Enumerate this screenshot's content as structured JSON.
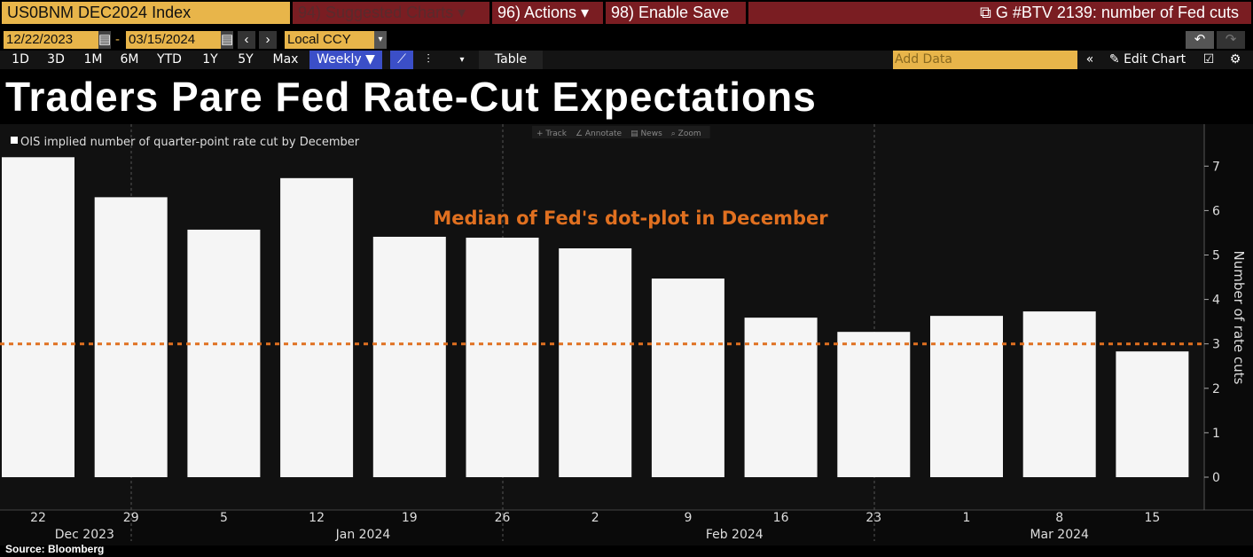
{
  "toolbar": {
    "ticker": "US0BNM DEC2024 Index",
    "suggested": "94) Suggested Charts ▾",
    "actions": "96) Actions ▾",
    "enable_save": "98) Enable Save",
    "chart_title": "G #BTV 2139: number of Fed cuts",
    "start_date": "12/22/2023",
    "end_date": "03/15/2024",
    "currency": "Local CCY",
    "periods": [
      "1D",
      "3D",
      "1M",
      "6M",
      "YTD",
      "1Y",
      "5Y",
      "Max"
    ],
    "frequency": "Weekly ▼",
    "table": "Table",
    "add_data_placeholder": "Add Data",
    "edit_chart": "Edit Chart"
  },
  "plot_tools": [
    "+ Track",
    "∠ Annotate",
    "▤ News",
    "⌕ Zoom"
  ],
  "headline": "Traders Pare Fed Rate-Cut Expectations",
  "source": "Source: Bloomberg",
  "colors": {
    "bar": "#f5f5f5",
    "median_line": "#e07020",
    "amber": "#e8b54a",
    "red": "#7a1d22"
  },
  "chart_data": {
    "type": "bar",
    "legend": "OIS implied number of quarter-point rate cut by December",
    "categories": [
      "22",
      "29",
      "5",
      "12",
      "19",
      "26",
      "2",
      "9",
      "16",
      "23",
      "1",
      "8",
      "15"
    ],
    "months": [
      {
        "label": "Dec 2023",
        "from": 0,
        "to": 1
      },
      {
        "label": "Jan 2024",
        "from": 2,
        "to": 5
      },
      {
        "label": "Feb 2024",
        "from": 6,
        "to": 9
      },
      {
        "label": "Mar 2024",
        "from": 10,
        "to": 12
      }
    ],
    "values": [
      7.2,
      6.3,
      5.57,
      6.73,
      5.41,
      5.39,
      5.15,
      4.47,
      3.59,
      3.27,
      3.63,
      3.73,
      2.83
    ],
    "ylabel": "Number of rate cuts",
    "ylim": [
      0,
      7.7
    ],
    "yticks": [
      0,
      1,
      2,
      3,
      4,
      5,
      6,
      7
    ],
    "reference_line": {
      "value": 3,
      "label": "Median of Fed's dot-plot in December"
    }
  }
}
